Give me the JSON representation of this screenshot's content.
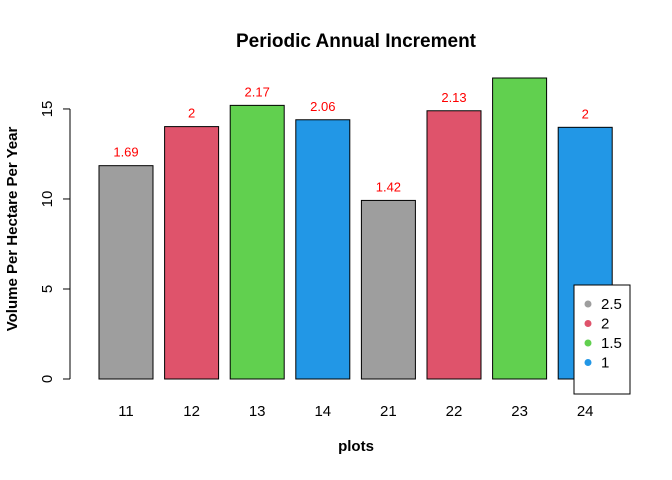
{
  "chart_data": {
    "type": "bar",
    "title": "Periodic Annual Increment",
    "xlabel": "plots",
    "ylabel": "Volume Per Hectare Per Year",
    "categories": [
      "11",
      "12",
      "13",
      "14",
      "21",
      "22",
      "23",
      "24"
    ],
    "values": [
      11.85,
      14.02,
      15.2,
      14.4,
      9.92,
      14.9,
      16.72,
      13.98
    ],
    "bar_labels": [
      "1.69",
      "2",
      "2.17",
      "2.06",
      "1.42",
      "2.13",
      "",
      "2"
    ],
    "bar_groups": [
      "2.5",
      "2",
      "1.5",
      "1",
      "2.5",
      "2",
      "1.5",
      "1"
    ],
    "ylim": [
      0,
      16.72
    ],
    "yticks": [
      0,
      5,
      10,
      15
    ],
    "grid": false,
    "legend": {
      "placement": "bottom-right",
      "entries": [
        {
          "label": "2.5",
          "color": "#9E9E9E"
        },
        {
          "label": "2",
          "color": "#DF536B"
        },
        {
          "label": "1.5",
          "color": "#61D04F"
        },
        {
          "label": "1",
          "color": "#2297E6"
        }
      ]
    },
    "label_color": "#FF0000"
  }
}
